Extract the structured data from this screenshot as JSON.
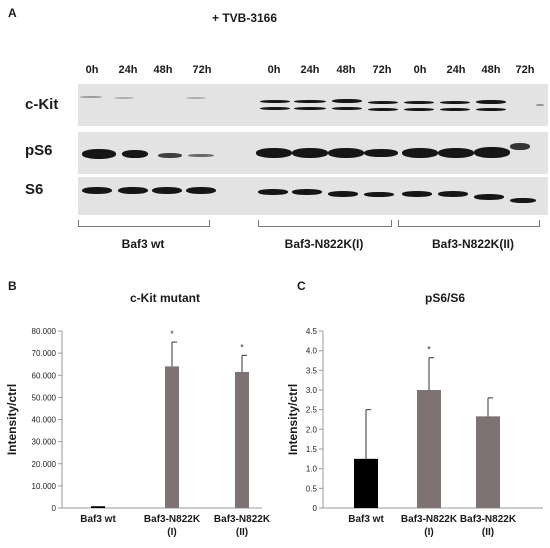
{
  "panel_a": {
    "letter": "A",
    "treatment": "+ TVB-3166",
    "time_points": [
      "0h",
      "24h",
      "48h",
      "72h",
      "0h",
      "24h",
      "48h",
      "72h",
      "0h",
      "24h",
      "48h",
      "72h"
    ],
    "rows": [
      {
        "label": "c-Kit"
      },
      {
        "label": "pS6"
      },
      {
        "label": "S6"
      }
    ],
    "groups": [
      "Baf3 wt",
      "Baf3-N822K(I)",
      "Baf3-N822K(II)"
    ]
  },
  "chart_data": [
    {
      "panel_letter": "B",
      "type": "bar",
      "title": "c-Kit mutant",
      "ylabel": "Intensity/ctrl",
      "xlabel": "",
      "ylim": [
        0,
        80000
      ],
      "yticks": [
        "0",
        "10.000",
        "20.000",
        "30.000",
        "40.000",
        "50.000",
        "60.000",
        "70.000",
        "80.000"
      ],
      "categories": [
        {
          "line1": "Baf3 wt",
          "line2": ""
        },
        {
          "line1": "Baf3-N822K",
          "line2": "(I)"
        },
        {
          "line1": "Baf3-N822K",
          "line2": "(II)"
        }
      ],
      "values": [
        800,
        64000,
        61500
      ],
      "errors": [
        0,
        11000,
        7500
      ],
      "significance": [
        "",
        "*",
        "*"
      ],
      "colors": [
        "#000000",
        "#7f7272",
        "#7f7272"
      ],
      "grid": false
    },
    {
      "panel_letter": "C",
      "type": "bar",
      "title": "pS6/S6",
      "ylabel": "Intensity/ctrl",
      "xlabel": "",
      "ylim": [
        0,
        4.5
      ],
      "yticks": [
        "0",
        "0.5",
        "1.0",
        "1.5",
        "2.0",
        "2.5",
        "3.0",
        "3.5",
        "4.0",
        "4.5"
      ],
      "categories": [
        {
          "line1": "Baf3 wt",
          "line2": ""
        },
        {
          "line1": "Baf3-N822K",
          "line2": "(I)"
        },
        {
          "line1": "Baf3-N822K",
          "line2": "(II)"
        }
      ],
      "values": [
        1.25,
        3.0,
        2.33
      ],
      "errors": [
        1.25,
        0.82,
        0.47
      ],
      "significance": [
        "",
        "*",
        ""
      ],
      "colors": [
        "#000000",
        "#7f7272",
        "#7f7272"
      ],
      "grid": false
    }
  ]
}
